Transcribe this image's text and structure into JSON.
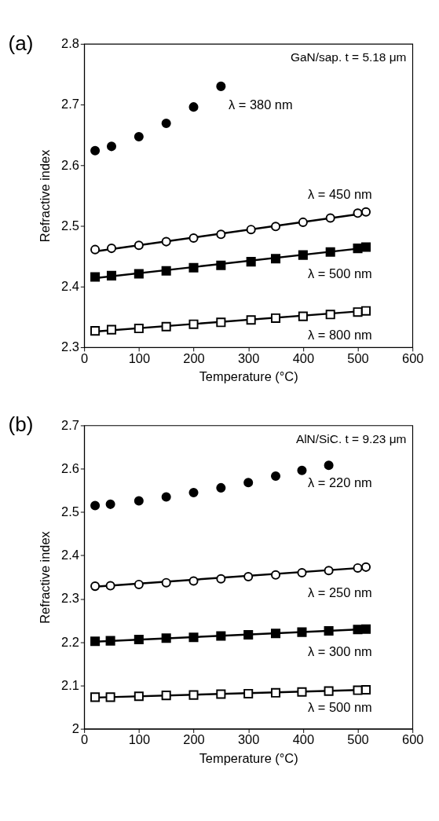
{
  "chart_data": [
    {
      "type": "scatter",
      "title": "(a)",
      "annotations": [
        "GaN/sap. t = 5.18 μm"
      ],
      "xlabel": "Temperature (°C)",
      "ylabel": "Refractive index",
      "xlim": [
        0,
        600
      ],
      "xticks": [
        0,
        100,
        200,
        300,
        400,
        500,
        600
      ],
      "ylim": [
        2.3,
        2.8
      ],
      "yticks": [
        2.3,
        2.4,
        2.5,
        2.6,
        2.7,
        2.8
      ],
      "x": [
        20,
        50,
        100,
        150,
        200,
        250,
        305,
        350,
        400,
        450,
        500,
        515
      ],
      "series": [
        {
          "type": "line",
          "color": "#000000",
          "x": [
            20,
            515
          ],
          "values": [
            2.458,
            2.521
          ]
        },
        {
          "type": "line",
          "color": "#000000",
          "x": [
            20,
            515
          ],
          "values": [
            2.414,
            2.464
          ]
        },
        {
          "type": "line",
          "color": "#000000",
          "x": [
            20,
            515
          ],
          "values": [
            2.326,
            2.36
          ]
        },
        {
          "name": "λ = 380 nm",
          "color": "#000000",
          "marker": "circle",
          "x": [
            20,
            50,
            100,
            150,
            200,
            250
          ],
          "values": [
            2.624,
            2.631,
            2.647,
            2.669,
            2.696,
            2.73
          ]
        },
        {
          "name": "λ = 450 nm",
          "color": "#000000",
          "marker": "circle",
          "values": [
            2.461,
            2.463,
            2.468,
            2.474,
            2.48,
            2.486,
            2.494,
            2.499,
            2.506,
            2.513,
            2.521,
            2.523
          ]
        },
        {
          "name": "λ = 500 nm",
          "color": "#000000",
          "marker": "square",
          "values": [
            2.416,
            2.418,
            2.421,
            2.426,
            2.431,
            2.435,
            2.441,
            2.446,
            2.452,
            2.457,
            2.463,
            2.465
          ]
        },
        {
          "name": "λ = 800 nm",
          "color": "#000000",
          "marker": "square",
          "values": [
            2.327,
            2.329,
            2.331,
            2.334,
            2.338,
            2.341,
            2.345,
            2.348,
            2.351,
            2.354,
            2.358,
            2.36
          ]
        }
      ]
    },
    {
      "type": "scatter",
      "title": "(b)",
      "annotations": [
        "AlN/SiC. t = 9.23 μm"
      ],
      "xlabel": "Temperature (°C)",
      "ylabel": "Refractive index",
      "xlim": [
        0,
        600
      ],
      "xticks": [
        0,
        100,
        200,
        300,
        400,
        500,
        600
      ],
      "ylim": [
        2,
        2.7
      ],
      "yticks": [
        2,
        2.1,
        2.2,
        2.3,
        2.4,
        2.5,
        2.6,
        2.7
      ],
      "x": [
        20,
        48,
        100,
        150,
        200,
        250,
        300,
        350,
        398,
        447,
        500,
        515
      ],
      "series": [
        {
          "type": "line",
          "color": "#000000",
          "x": [
            20,
            515
          ],
          "values": [
            2.328,
            2.372
          ]
        },
        {
          "type": "line",
          "color": "#000000",
          "x": [
            20,
            515
          ],
          "values": [
            2.201,
            2.23
          ]
        },
        {
          "type": "line",
          "color": "#000000",
          "x": [
            20,
            515
          ],
          "values": [
            2.072,
            2.09
          ]
        },
        {
          "name": "λ = 220 nm",
          "color": "#000000",
          "marker": "circle",
          "x": [
            20,
            48,
            100,
            150,
            200,
            250,
            300,
            350,
            398,
            447
          ],
          "values": [
            2.515,
            2.518,
            2.526,
            2.535,
            2.545,
            2.556,
            2.568,
            2.583,
            2.596,
            2.608
          ]
        },
        {
          "name": "λ = 250 nm",
          "color": "#000000",
          "marker": "circle",
          "values": [
            2.329,
            2.33,
            2.333,
            2.337,
            2.341,
            2.346,
            2.351,
            2.355,
            2.36,
            2.365,
            2.371,
            2.373
          ]
        },
        {
          "name": "λ = 300 nm",
          "color": "#000000",
          "marker": "square",
          "values": [
            2.202,
            2.203,
            2.206,
            2.209,
            2.211,
            2.214,
            2.217,
            2.22,
            2.223,
            2.226,
            2.229,
            2.23
          ]
        },
        {
          "name": "λ = 500 nm",
          "color": "#000000",
          "marker": "square",
          "values": [
            2.073,
            2.073,
            2.075,
            2.077,
            2.078,
            2.08,
            2.081,
            2.083,
            2.085,
            2.087,
            2.089,
            2.09
          ]
        }
      ]
    }
  ]
}
